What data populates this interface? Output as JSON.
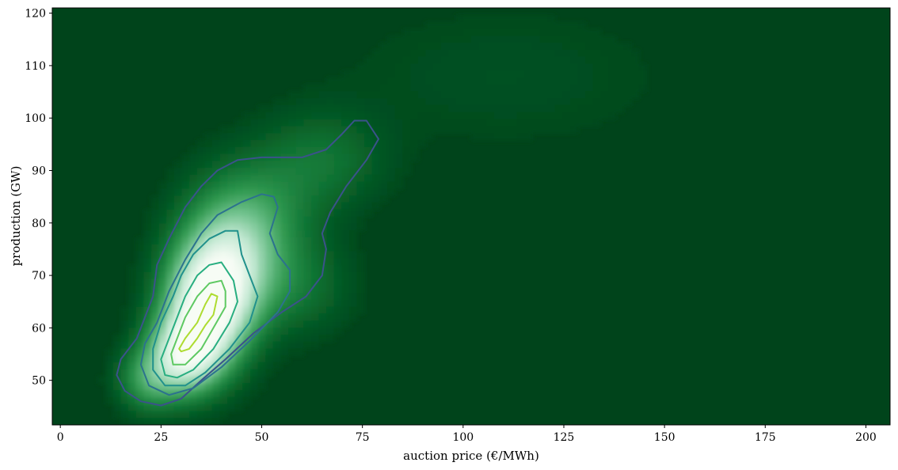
{
  "chart_data": {
    "type": "heatmap",
    "subtype": "2d-kde-density-with-contours",
    "title": "",
    "xlabel": "auction price (€/MWh)",
    "ylabel": "production (GW)",
    "xlim": [
      -2,
      206
    ],
    "ylim": [
      41.5,
      121
    ],
    "x_ticks": [
      0,
      25,
      50,
      75,
      100,
      125,
      150,
      175,
      200
    ],
    "y_ticks": [
      50,
      60,
      70,
      80,
      90,
      100,
      110,
      120
    ],
    "grid": false,
    "colormap": "Greens_r",
    "colors": {
      "background": "#00441b",
      "low_density": "#0b6b2e",
      "high_density": "#f7fcf5"
    },
    "contour_levels": [
      {
        "level": 1,
        "color": "#3b528b",
        "points": [
          [
            79,
            96
          ],
          [
            76,
            99.5
          ],
          [
            73,
            99.5
          ],
          [
            70,
            97
          ],
          [
            66,
            94
          ],
          [
            60,
            92.5
          ],
          [
            50,
            92.5
          ],
          [
            44,
            92
          ],
          [
            39,
            90
          ],
          [
            35,
            87
          ],
          [
            31,
            83
          ],
          [
            27,
            77
          ],
          [
            24,
            72
          ],
          [
            23,
            66
          ],
          [
            21,
            62
          ],
          [
            19,
            58
          ],
          [
            15,
            54
          ],
          [
            14,
            51
          ],
          [
            16,
            48
          ],
          [
            20,
            46
          ],
          [
            25,
            45.2
          ],
          [
            30,
            46.5
          ],
          [
            35,
            50
          ],
          [
            41,
            54
          ],
          [
            48,
            59
          ],
          [
            55,
            63
          ],
          [
            61,
            66
          ],
          [
            65,
            70
          ],
          [
            66,
            75
          ],
          [
            65,
            78
          ],
          [
            67,
            82
          ],
          [
            71,
            87
          ],
          [
            76,
            92
          ],
          [
            79,
            96
          ]
        ]
      },
      {
        "level": 2,
        "color": "#2c728e",
        "points": [
          [
            53,
            85
          ],
          [
            50,
            85.5
          ],
          [
            45,
            84
          ],
          [
            39,
            81.5
          ],
          [
            35,
            78
          ],
          [
            31,
            73
          ],
          [
            27,
            67
          ],
          [
            24,
            61
          ],
          [
            21,
            57
          ],
          [
            20,
            53
          ],
          [
            22,
            49
          ],
          [
            27,
            47.2
          ],
          [
            33,
            48.5
          ],
          [
            40,
            52.5
          ],
          [
            47,
            57.5
          ],
          [
            54,
            63
          ],
          [
            57,
            67
          ],
          [
            57,
            71
          ],
          [
            54,
            74
          ],
          [
            52,
            78
          ],
          [
            54,
            83
          ],
          [
            53,
            85
          ]
        ]
      },
      {
        "level": 3,
        "color": "#21918c",
        "points": [
          [
            44,
            78.5
          ],
          [
            41,
            78.5
          ],
          [
            37,
            77
          ],
          [
            33,
            74
          ],
          [
            30,
            70
          ],
          [
            28,
            66
          ],
          [
            25,
            61
          ],
          [
            23,
            56
          ],
          [
            23,
            52
          ],
          [
            26,
            49
          ],
          [
            31,
            49
          ],
          [
            36,
            51.5
          ],
          [
            42,
            56
          ],
          [
            47,
            61
          ],
          [
            49,
            66
          ],
          [
            47,
            70
          ],
          [
            45,
            74
          ],
          [
            44,
            78.5
          ]
        ]
      },
      {
        "level": 4,
        "color": "#28ae80",
        "points": [
          [
            40,
            72.5
          ],
          [
            37,
            72
          ],
          [
            34,
            70
          ],
          [
            31,
            66
          ],
          [
            29,
            62
          ],
          [
            27,
            58
          ],
          [
            25,
            54
          ],
          [
            26,
            51
          ],
          [
            29,
            50.5
          ],
          [
            33,
            52
          ],
          [
            38,
            56
          ],
          [
            42,
            61
          ],
          [
            44,
            65
          ],
          [
            43,
            69
          ],
          [
            40,
            72.5
          ]
        ]
      },
      {
        "level": 5,
        "color": "#5ec962",
        "points": [
          [
            40,
            69
          ],
          [
            37,
            68.5
          ],
          [
            34,
            66
          ],
          [
            31,
            62
          ],
          [
            29,
            58
          ],
          [
            27.5,
            55
          ],
          [
            28,
            53
          ],
          [
            31,
            53
          ],
          [
            35,
            56
          ],
          [
            38,
            60
          ],
          [
            41,
            64
          ],
          [
            41,
            67
          ],
          [
            40,
            69
          ]
        ]
      },
      {
        "level": 6,
        "color": "#addc30",
        "points": [
          [
            39,
            66
          ],
          [
            37.5,
            66.5
          ],
          [
            36,
            64.5
          ],
          [
            34,
            61
          ],
          [
            31,
            58
          ],
          [
            29.5,
            56
          ],
          [
            30,
            55.5
          ],
          [
            32,
            56
          ],
          [
            34,
            58
          ],
          [
            36,
            60.5
          ],
          [
            38,
            62.5
          ],
          [
            39,
            66
          ]
        ]
      }
    ],
    "density_blobs": [
      {
        "x": 37,
        "y": 64,
        "sx": 7,
        "sy": 7,
        "weight": 1.0
      },
      {
        "x": 31,
        "y": 55,
        "sx": 6,
        "sy": 5,
        "weight": 0.8
      },
      {
        "x": 42,
        "y": 73,
        "sx": 8,
        "sy": 7,
        "weight": 0.55
      },
      {
        "x": 48,
        "y": 82,
        "sx": 10,
        "sy": 7,
        "weight": 0.25
      },
      {
        "x": 65,
        "y": 92,
        "sx": 10,
        "sy": 6,
        "weight": 0.15
      },
      {
        "x": 22,
        "y": 50,
        "sx": 5,
        "sy": 4,
        "weight": 0.3
      },
      {
        "x": 58,
        "y": 68,
        "sx": 9,
        "sy": 6,
        "weight": 0.15
      },
      {
        "x": 110,
        "y": 108,
        "sx": 30,
        "sy": 10,
        "weight": 0.04
      }
    ]
  }
}
